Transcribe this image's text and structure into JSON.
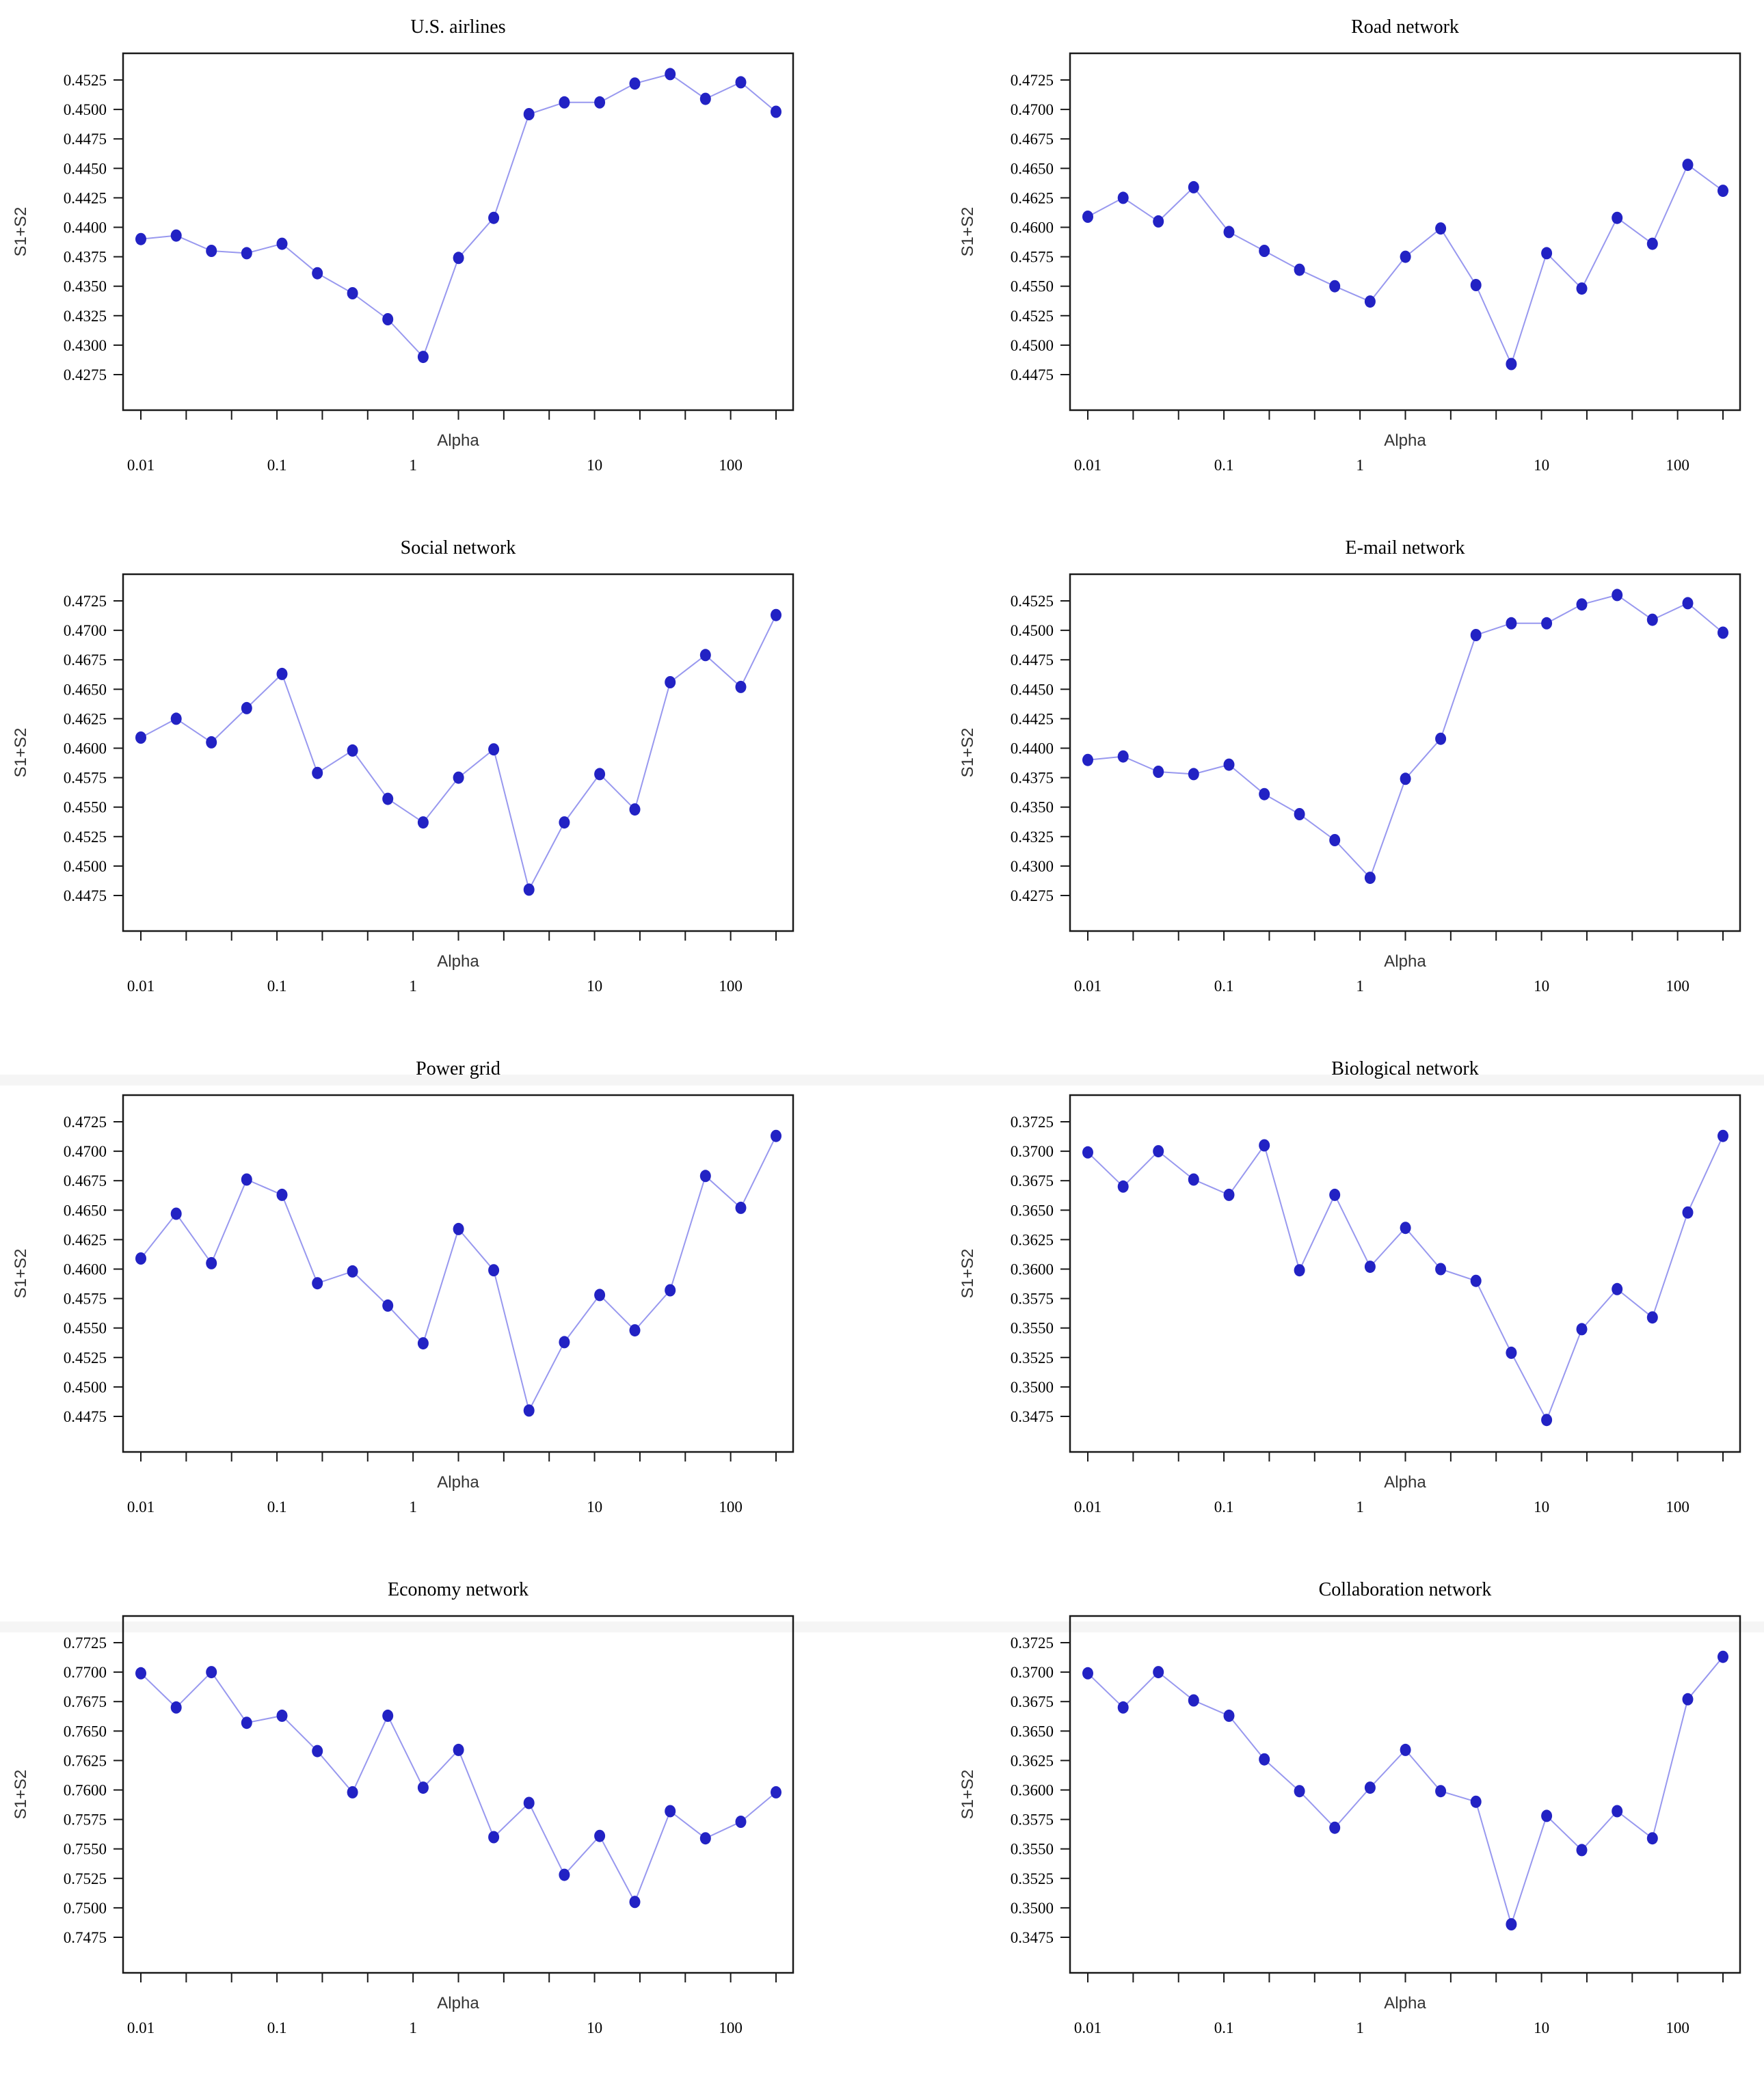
{
  "figure": {
    "layout": {
      "columns": 2,
      "rows": 4
    },
    "point_color": "#2222c4",
    "line_color": "#9898ef",
    "axis_color": "#1a1a1a",
    "tick_text_color": "#000000",
    "axis_label_color": "#333333",
    "background_color": "#ffffff"
  },
  "chart_data": [
    {
      "type": "line",
      "title": "U.S. airlines",
      "xlabel": "Alpha",
      "ylabel": "S1+S2",
      "x_scale": "log",
      "x_tick_labels": [
        "0.01",
        "0.1",
        "1",
        "10",
        "100"
      ],
      "y_ticks": [
        0.4275,
        0.43,
        0.4325,
        0.435,
        0.4375,
        0.44,
        0.4425,
        0.445,
        0.4475,
        0.45,
        0.4525
      ],
      "ylim": [
        0.4253,
        0.4548
      ],
      "grid": false,
      "x": [
        0.01,
        0.0178,
        0.0316,
        0.0562,
        0.1,
        0.178,
        0.316,
        0.562,
        1,
        1.78,
        3.16,
        5.62,
        10,
        17.8,
        31.6,
        56.2,
        100,
        178,
        316
      ],
      "y": [
        0.439,
        0.4393,
        0.438,
        0.4378,
        0.4386,
        0.4361,
        0.4344,
        0.4322,
        0.429,
        0.4374,
        0.4408,
        0.4496,
        0.4506,
        0.4506,
        0.4522,
        0.453,
        0.4509,
        0.4523,
        0.4498
      ]
    },
    {
      "type": "line",
      "title": "Road network",
      "xlabel": "Alpha",
      "ylabel": "S1+S2",
      "x_scale": "log",
      "x_tick_labels": [
        "0.01",
        "0.1",
        "1",
        "10",
        "100"
      ],
      "y_ticks": [
        0.4475,
        0.45,
        0.4525,
        0.455,
        0.4575,
        0.46,
        0.4625,
        0.465,
        0.4675,
        0.47,
        0.4725
      ],
      "ylim": [
        0.4453,
        0.4748
      ],
      "grid": false,
      "x": [
        0.01,
        0.0178,
        0.0316,
        0.0562,
        0.1,
        0.178,
        0.316,
        0.562,
        1,
        1.78,
        3.16,
        5.62,
        10,
        17.8,
        31.6,
        56.2,
        100,
        178,
        316
      ],
      "y": [
        0.4609,
        0.4625,
        0.4605,
        0.4634,
        0.4596,
        0.458,
        0.4564,
        0.455,
        0.4537,
        0.4575,
        0.4599,
        0.4551,
        0.4484,
        0.4578,
        0.4548,
        0.4608,
        0.4586,
        0.4653,
        0.4631
      ]
    },
    {
      "type": "line",
      "title": "Social network",
      "xlabel": "Alpha",
      "ylabel": "S1+S2",
      "x_scale": "log",
      "x_tick_labels": [
        "0.01",
        "0.1",
        "1",
        "10",
        "100"
      ],
      "y_ticks": [
        0.4475,
        0.45,
        0.4525,
        0.455,
        0.4575,
        0.46,
        0.4625,
        0.465,
        0.4675,
        0.47,
        0.4725
      ],
      "ylim": [
        0.4453,
        0.4748
      ],
      "grid": false,
      "x": [
        0.01,
        0.0178,
        0.0316,
        0.0562,
        0.1,
        0.178,
        0.316,
        0.562,
        1,
        1.78,
        3.16,
        5.62,
        10,
        17.8,
        31.6,
        56.2,
        100,
        178,
        316
      ],
      "y": [
        0.4609,
        0.4625,
        0.4605,
        0.4634,
        0.4663,
        0.4579,
        0.4598,
        0.4557,
        0.4537,
        0.4575,
        0.4599,
        0.448,
        0.4537,
        0.4578,
        0.4548,
        0.4656,
        0.4679,
        0.4652,
        0.4713
      ]
    },
    {
      "type": "line",
      "title": "E-mail network",
      "xlabel": "Alpha",
      "ylabel": "S1+S2",
      "x_scale": "log",
      "x_tick_labels": [
        "0.01",
        "0.1",
        "1",
        "10",
        "100"
      ],
      "y_ticks": [
        0.4275,
        0.43,
        0.4325,
        0.435,
        0.4375,
        0.44,
        0.4425,
        0.445,
        0.4475,
        0.45,
        0.4525
      ],
      "ylim": [
        0.4253,
        0.4548
      ],
      "grid": false,
      "x": [
        0.01,
        0.0178,
        0.0316,
        0.0562,
        0.1,
        0.178,
        0.316,
        0.562,
        1,
        1.78,
        3.16,
        5.62,
        10,
        17.8,
        31.6,
        56.2,
        100,
        178,
        316
      ],
      "y": [
        0.439,
        0.4393,
        0.438,
        0.4378,
        0.4386,
        0.4361,
        0.4344,
        0.4322,
        0.429,
        0.4374,
        0.4408,
        0.4496,
        0.4506,
        0.4506,
        0.4522,
        0.453,
        0.4509,
        0.4523,
        0.4498
      ]
    },
    {
      "type": "line",
      "title": "Power grid",
      "xlabel": "Alpha",
      "ylabel": "S1+S2",
      "x_scale": "log",
      "x_tick_labels": [
        "0.01",
        "0.1",
        "1",
        "10",
        "100"
      ],
      "y_ticks": [
        0.4475,
        0.45,
        0.4525,
        0.455,
        0.4575,
        0.46,
        0.4625,
        0.465,
        0.4675,
        0.47,
        0.4725
      ],
      "ylim": [
        0.4453,
        0.4748
      ],
      "grid": false,
      "x": [
        0.01,
        0.0178,
        0.0316,
        0.0562,
        0.1,
        0.178,
        0.316,
        0.562,
        1,
        1.78,
        3.16,
        5.62,
        10,
        17.8,
        31.6,
        56.2,
        100,
        178,
        316
      ],
      "y": [
        0.4609,
        0.4647,
        0.4605,
        0.4676,
        0.4663,
        0.4588,
        0.4598,
        0.4569,
        0.4537,
        0.4634,
        0.4599,
        0.448,
        0.4538,
        0.4578,
        0.4548,
        0.4582,
        0.4679,
        0.4652,
        0.4713
      ]
    },
    {
      "type": "line",
      "title": "Biological network",
      "xlabel": "Alpha",
      "ylabel": "S1+S2",
      "x_scale": "log",
      "x_tick_labels": [
        "0.01",
        "0.1",
        "1",
        "10",
        "100"
      ],
      "y_ticks": [
        0.3475,
        0.35,
        0.3525,
        0.355,
        0.3575,
        0.36,
        0.3625,
        0.365,
        0.3675,
        0.37,
        0.3725
      ],
      "ylim": [
        0.3453,
        0.3748
      ],
      "grid": false,
      "x": [
        0.01,
        0.0178,
        0.0316,
        0.0562,
        0.1,
        0.178,
        0.316,
        0.562,
        1,
        1.78,
        3.16,
        5.62,
        10,
        17.8,
        31.6,
        56.2,
        100,
        178,
        316
      ],
      "y": [
        0.3699,
        0.367,
        0.37,
        0.3676,
        0.3663,
        0.3705,
        0.3599,
        0.3663,
        0.3602,
        0.3635,
        0.36,
        0.359,
        0.3529,
        0.3472,
        0.3549,
        0.3583,
        0.3559,
        0.3648,
        0.3713
      ]
    },
    {
      "type": "line",
      "title": "Economy network",
      "xlabel": "Alpha",
      "ylabel": "S1+S2",
      "x_scale": "log",
      "x_tick_labels": [
        "0.01",
        "0.1",
        "1",
        "10",
        "100"
      ],
      "y_ticks": [
        0.7475,
        0.75,
        0.7525,
        0.755,
        0.7575,
        0.76,
        0.7625,
        0.765,
        0.7675,
        0.77,
        0.7725
      ],
      "ylim": [
        0.7453,
        0.7748
      ],
      "grid": false,
      "x": [
        0.01,
        0.0178,
        0.0316,
        0.0562,
        0.1,
        0.178,
        0.316,
        0.562,
        1,
        1.78,
        3.16,
        5.62,
        10,
        17.8,
        31.6,
        56.2,
        100,
        178,
        316
      ],
      "y": [
        0.7699,
        0.767,
        0.77,
        0.7657,
        0.7663,
        0.7633,
        0.7598,
        0.7663,
        0.7602,
        0.7634,
        0.756,
        0.7589,
        0.7528,
        0.7561,
        0.7505,
        0.7582,
        0.7559,
        0.7573,
        0.7598
      ]
    },
    {
      "type": "line",
      "title": "Collaboration network",
      "xlabel": "Alpha",
      "ylabel": "S1+S2",
      "x_scale": "log",
      "x_tick_labels": [
        "0.01",
        "0.1",
        "1",
        "10",
        "100"
      ],
      "y_ticks": [
        0.3475,
        0.35,
        0.3525,
        0.355,
        0.3575,
        0.36,
        0.3625,
        0.365,
        0.3675,
        0.37,
        0.3725
      ],
      "ylim": [
        0.3453,
        0.3748
      ],
      "grid": false,
      "x": [
        0.01,
        0.0178,
        0.0316,
        0.0562,
        0.1,
        0.178,
        0.316,
        0.562,
        1,
        1.78,
        3.16,
        5.62,
        10,
        17.8,
        31.6,
        56.2,
        100,
        178,
        316
      ],
      "y": [
        0.3699,
        0.367,
        0.37,
        0.3676,
        0.3663,
        0.3626,
        0.3599,
        0.3568,
        0.3602,
        0.3634,
        0.3599,
        0.359,
        0.3486,
        0.3578,
        0.3549,
        0.3582,
        0.3559,
        0.3677,
        0.3713
      ]
    }
  ]
}
